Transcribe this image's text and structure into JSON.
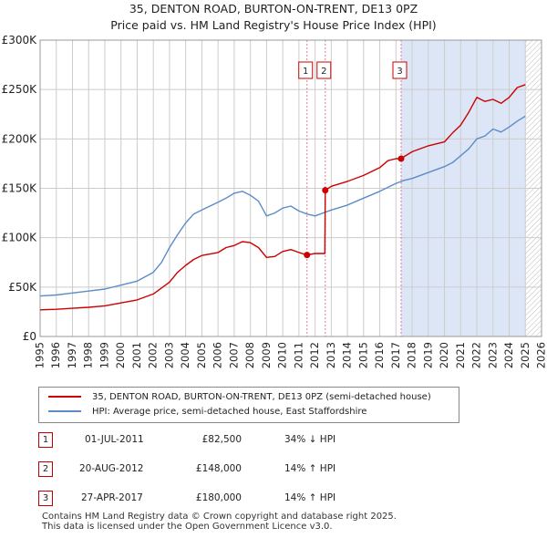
{
  "title_line1": "35, DENTON ROAD, BURTON-ON-TRENT, DE13 0PZ",
  "title_line2": "Price paid vs. HM Land Registry's House Price Index (HPI)",
  "colors": {
    "property": "#cc0000",
    "hpi": "#5b8cc8",
    "shade": "#dde6f7",
    "marker_line": "#e07a8a",
    "grid": "#cccccc"
  },
  "chart_data": {
    "type": "line",
    "xlim": [
      1995,
      2026
    ],
    "ylim": [
      0,
      300000
    ],
    "x_ticks": [
      "1995",
      "1996",
      "1997",
      "1998",
      "1999",
      "2000",
      "2001",
      "2002",
      "2003",
      "2004",
      "2005",
      "2006",
      "2007",
      "2008",
      "2009",
      "2010",
      "2011",
      "2012",
      "2013",
      "2014",
      "2015",
      "2016",
      "2017",
      "2018",
      "2019",
      "2020",
      "2021",
      "2022",
      "2023",
      "2024",
      "2025",
      "2026"
    ],
    "y_ticks": [
      {
        "value": 0,
        "label": "£0"
      },
      {
        "value": 50000,
        "label": "£50K"
      },
      {
        "value": 100000,
        "label": "£100K"
      },
      {
        "value": 150000,
        "label": "£150K"
      },
      {
        "value": 200000,
        "label": "£200K"
      },
      {
        "value": 250000,
        "label": "£250K"
      },
      {
        "value": 300000,
        "label": "£300K"
      }
    ],
    "shaded_region": {
      "from": 2017.32,
      "to": 2025.0
    },
    "future_hatch_from": 2025.0,
    "series": [
      {
        "name": "35, DENTON ROAD, BURTON-ON-TRENT, DE13 0PZ (semi-detached house)",
        "color": "#cc0000",
        "x": [
          1995,
          1996,
          1997,
          1998,
          1999,
          2000,
          2001,
          2002,
          2003,
          2003.5,
          2004,
          2004.5,
          2005,
          2006,
          2006.5,
          2007,
          2007.5,
          2008,
          2008.5,
          2009,
          2009.5,
          2010,
          2010.5,
          2011,
          2011.5,
          2012,
          2012.6,
          2012.63,
          2013,
          2014,
          2015,
          2016,
          2016.5,
          2017,
          2017.3,
          2018,
          2019,
          2020,
          2020.5,
          2021,
          2021.5,
          2022,
          2022.5,
          2023,
          2023.5,
          2024,
          2024.5,
          2025
        ],
        "y": [
          27000,
          27500,
          28500,
          29500,
          31000,
          34000,
          37000,
          43000,
          55000,
          65000,
          72000,
          78000,
          82000,
          85000,
          90000,
          92000,
          96000,
          95000,
          90000,
          80000,
          81000,
          86000,
          88000,
          85000,
          82500,
          84000,
          84000,
          148000,
          152000,
          157000,
          163000,
          171000,
          178000,
          180000,
          180000,
          187000,
          193000,
          197000,
          206000,
          214000,
          227000,
          242000,
          238000,
          240000,
          236000,
          242000,
          252000,
          255000
        ]
      },
      {
        "name": "HPI: Average price, semi-detached house, East Staffordshire",
        "color": "#5b8cc8",
        "x": [
          1995,
          1996,
          1997,
          1998,
          1999,
          2000,
          2001,
          2002,
          2002.5,
          2003,
          2003.5,
          2004,
          2004.5,
          2005,
          2006,
          2006.5,
          2007,
          2007.5,
          2008,
          2008.5,
          2009,
          2009.5,
          2010,
          2010.5,
          2011,
          2011.5,
          2012,
          2013,
          2014,
          2015,
          2016,
          2017,
          2017.5,
          2018,
          2019,
          2020,
          2020.5,
          2021,
          2021.5,
          2022,
          2022.5,
          2023,
          2023.5,
          2024,
          2024.5,
          2025
        ],
        "y": [
          41000,
          42000,
          44000,
          46000,
          48000,
          52000,
          56000,
          65000,
          75000,
          90000,
          103000,
          115000,
          124000,
          128000,
          136000,
          140000,
          145000,
          147000,
          143000,
          137000,
          122000,
          125000,
          130000,
          132000,
          127000,
          124000,
          122000,
          128000,
          133000,
          140000,
          147000,
          155000,
          158000,
          160000,
          166000,
          172000,
          176000,
          183000,
          190000,
          200000,
          203000,
          210000,
          207000,
          212000,
          218000,
          223000
        ]
      }
    ],
    "markers": [
      {
        "id": "1",
        "x": 2011.5,
        "price": 82500
      },
      {
        "id": "2",
        "x": 2012.63,
        "price": 148000
      },
      {
        "id": "3",
        "x": 2017.32,
        "price": 180000
      }
    ]
  },
  "legend": {
    "property_label": "35, DENTON ROAD, BURTON-ON-TRENT, DE13 0PZ (semi-detached house)",
    "hpi_label": "HPI: Average price, semi-detached house, East Staffordshire"
  },
  "transactions": [
    {
      "num": "1",
      "date": "01-JUL-2011",
      "price": "£82,500",
      "hpi": "34% ↓ HPI"
    },
    {
      "num": "2",
      "date": "20-AUG-2012",
      "price": "£148,000",
      "hpi": "14% ↑ HPI"
    },
    {
      "num": "3",
      "date": "27-APR-2017",
      "price": "£180,000",
      "hpi": "14% ↑ HPI"
    }
  ],
  "footer": {
    "line1": "Contains HM Land Registry data © Crown copyright and database right 2025.",
    "line2": "This data is licensed under the Open Government Licence v3.0."
  }
}
